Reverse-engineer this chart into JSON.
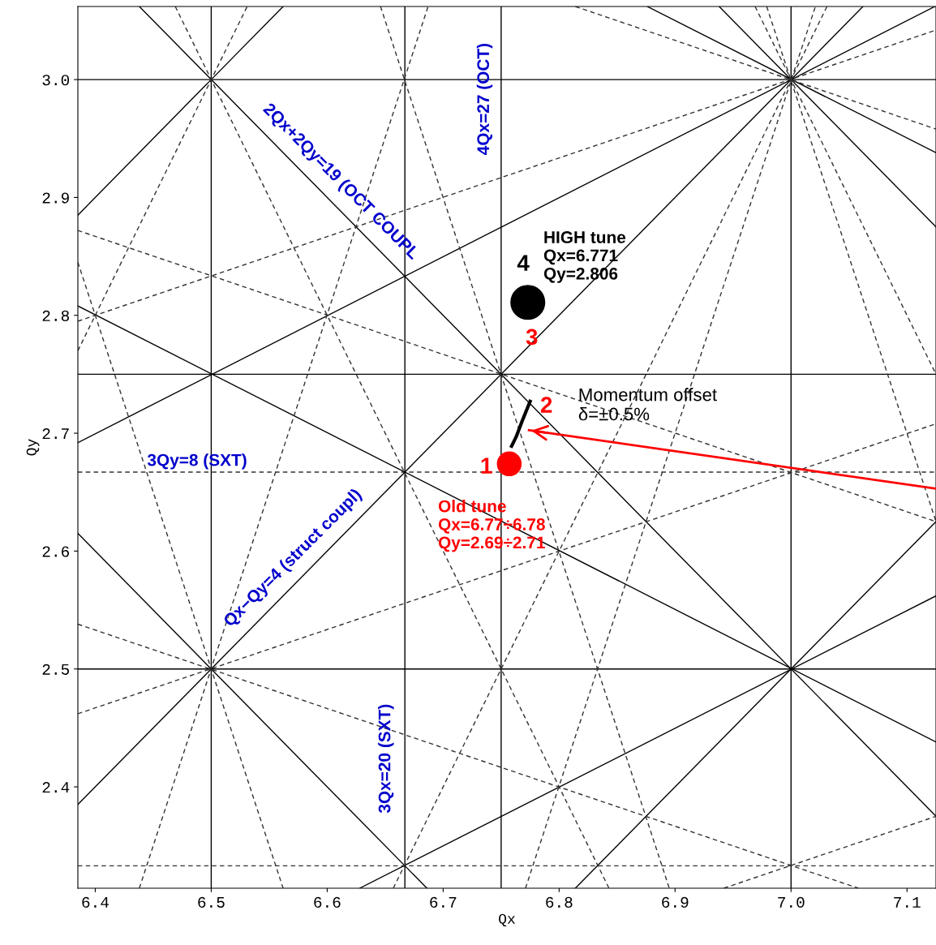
{
  "chart_data": {
    "type": "line",
    "xlabel": "Qx",
    "ylabel": "Qy",
    "xlim": [
      6.385,
      7.125
    ],
    "ylim": [
      2.314,
      3.062
    ],
    "xticks": [
      6.4,
      6.5,
      6.6,
      6.7,
      6.8,
      6.9,
      {
        "value": 7.0,
        "label": "7.0"
      },
      7.1
    ],
    "yticks": [
      2.4,
      2.5,
      2.6,
      2.7,
      2.8,
      2.9,
      {
        "value": 3.0,
        "label": "3.0"
      }
    ],
    "grid": false,
    "legend": false,
    "series": [
      {
        "color": "#000000",
        "line_style": "solid",
        "x": [
          6.5,
          6.5
        ],
        "values": [
          2.314,
          3.062
        ]
      },
      {
        "color": "#000000",
        "line_style": "solid",
        "x": [
          6.667,
          6.667
        ],
        "values": [
          2.314,
          3.062
        ]
      },
      {
        "color": "#000000",
        "line_style": "solid",
        "x": [
          6.75,
          6.75
        ],
        "values": [
          2.314,
          3.062
        ]
      },
      {
        "color": "#000000",
        "line_style": "solid",
        "x": [
          7.0,
          7.0
        ],
        "values": [
          2.314,
          3.062
        ]
      },
      {
        "color": "#000000",
        "line_style": "solid",
        "x": [
          6.385,
          7.125
        ],
        "values": [
          2.5,
          2.5
        ]
      },
      {
        "color": "#000000",
        "line_style": "solid",
        "x": [
          6.385,
          7.125
        ],
        "values": [
          2.75,
          2.75
        ]
      },
      {
        "color": "#000000",
        "line_style": "solid",
        "x": [
          6.385,
          7.125
        ],
        "values": [
          3.0,
          3.0
        ]
      },
      {
        "color": "#333333",
        "line_style": "dashed",
        "x": [
          6.385,
          7.125
        ],
        "values": [
          2.667,
          2.667
        ]
      },
      {
        "color": "#333333",
        "line_style": "dashed",
        "x": [
          6.385,
          7.125
        ],
        "values": [
          2.333,
          2.333
        ]
      },
      {
        "color": "#000000",
        "line_style": "solid",
        "x": [
          6.385,
          6.686
        ],
        "values": [
          2.615,
          2.314
        ]
      },
      {
        "color": "#000000",
        "line_style": "solid",
        "x": [
          6.438,
          7.125
        ],
        "values": [
          3.062,
          2.375
        ]
      },
      {
        "color": "#000000",
        "line_style": "solid",
        "x": [
          6.938,
          7.125
        ],
        "values": [
          3.062,
          2.875
        ]
      },
      {
        "color": "#000000",
        "line_style": "solid",
        "x": [
          6.385,
          6.562
        ],
        "values": [
          2.885,
          3.062
        ]
      },
      {
        "color": "#000000",
        "line_style": "solid",
        "x": [
          6.385,
          7.062
        ],
        "values": [
          2.385,
          3.062
        ]
      },
      {
        "color": "#000000",
        "line_style": "solid",
        "x": [
          6.814,
          7.125
        ],
        "values": [
          2.314,
          2.625
        ]
      },
      {
        "color": "#000000",
        "line_style": "solid",
        "x": [
          6.385,
          7.125
        ],
        "values": [
          2.808,
          2.438
        ]
      },
      {
        "color": "#000000",
        "line_style": "solid",
        "x": [
          6.876,
          7.125
        ],
        "values": [
          3.062,
          2.938
        ]
      },
      {
        "color": "#000000",
        "line_style": "solid",
        "x": [
          6.385,
          7.124
        ],
        "values": [
          2.692,
          3.062
        ]
      },
      {
        "color": "#000000",
        "line_style": "solid",
        "x": [
          6.628,
          7.125
        ],
        "values": [
          2.314,
          2.562
        ]
      },
      {
        "color": "#333333",
        "line_style": "dashed",
        "x": [
          6.469,
          6.843
        ],
        "values": [
          3.062,
          2.314
        ]
      },
      {
        "color": "#333333",
        "line_style": "dashed",
        "x": [
          6.969,
          7.125
        ],
        "values": [
          3.062,
          2.75
        ]
      },
      {
        "color": "#333333",
        "line_style": "dashed",
        "x": [
          6.385,
          6.531
        ],
        "values": [
          2.77,
          3.062
        ]
      },
      {
        "color": "#333333",
        "line_style": "dashed",
        "x": [
          6.657,
          7.031
        ],
        "values": [
          2.314,
          3.062
        ]
      },
      {
        "color": "#333333",
        "line_style": "dashed",
        "x": [
          6.385,
          6.562
        ],
        "values": [
          2.845,
          2.314
        ]
      },
      {
        "color": "#333333",
        "line_style": "dashed",
        "x": [
          6.646,
          6.895
        ],
        "values": [
          3.062,
          2.314
        ]
      },
      {
        "color": "#333333",
        "line_style": "dashed",
        "x": [
          6.979,
          7.125
        ],
        "values": [
          3.062,
          2.625
        ]
      },
      {
        "color": "#333333",
        "line_style": "dashed",
        "x": [
          6.438,
          6.687
        ],
        "values": [
          2.314,
          3.062
        ]
      },
      {
        "color": "#333333",
        "line_style": "dashed",
        "x": [
          6.771,
          7.021
        ],
        "values": [
          2.314,
          3.062
        ]
      },
      {
        "color": "#333333",
        "line_style": "dashed",
        "x": [
          6.385,
          7.058
        ],
        "values": [
          2.538,
          2.314
        ]
      },
      {
        "color": "#333333",
        "line_style": "dashed",
        "x": [
          6.385,
          7.125
        ],
        "values": [
          2.872,
          2.625
        ]
      },
      {
        "color": "#333333",
        "line_style": "dashed",
        "x": [
          6.814,
          7.125
        ],
        "values": [
          3.062,
          2.958
        ]
      },
      {
        "color": "#333333",
        "line_style": "dashed",
        "x": [
          6.385,
          7.125
        ],
        "values": [
          2.795,
          3.042
        ]
      },
      {
        "color": "#333333",
        "line_style": "dashed",
        "x": [
          6.385,
          7.125
        ],
        "values": [
          2.462,
          2.708
        ]
      },
      {
        "color": "#333333",
        "line_style": "dashed",
        "x": [
          6.942,
          7.125
        ],
        "values": [
          2.314,
          2.375
        ]
      },
      {
        "color": "#000000",
        "line_style": "solid",
        "x": [
          6.759,
          6.763,
          6.768,
          6.775
        ],
        "values": [
          2.689,
          2.697,
          2.71,
          2.727
        ]
      },
      {
        "color": "#ff0000",
        "line_style": "solid",
        "x": [
          7.125,
          6.774
        ],
        "values": [
          2.653,
          2.7025
        ]
      },
      {
        "type": "scatter",
        "color": "#ff0000",
        "marker": "circle",
        "x": [
          6.757
        ],
        "values": [
          2.674
        ]
      },
      {
        "type": "scatter",
        "color": "#000000",
        "marker": "circle",
        "x": [
          6.773
        ],
        "values": [
          2.811
        ]
      }
    ],
    "annotations": [
      "2Qx+2Qy=19 (OCT COUPL",
      "4Qx=27 (OCT)",
      "3Qy=8 (SXT)",
      "Qx−Qy=4 (struct coupl)",
      "3Qx=20 (SXT)",
      "HIGH tune\nQx=6.771\nQy=2.806",
      "4",
      "3",
      "2",
      "1",
      "Old tune\nQx=6.77÷6.78\nQy=2.69÷2.71",
      "Momentum offset\nδ=±0.5%"
    ]
  }
}
